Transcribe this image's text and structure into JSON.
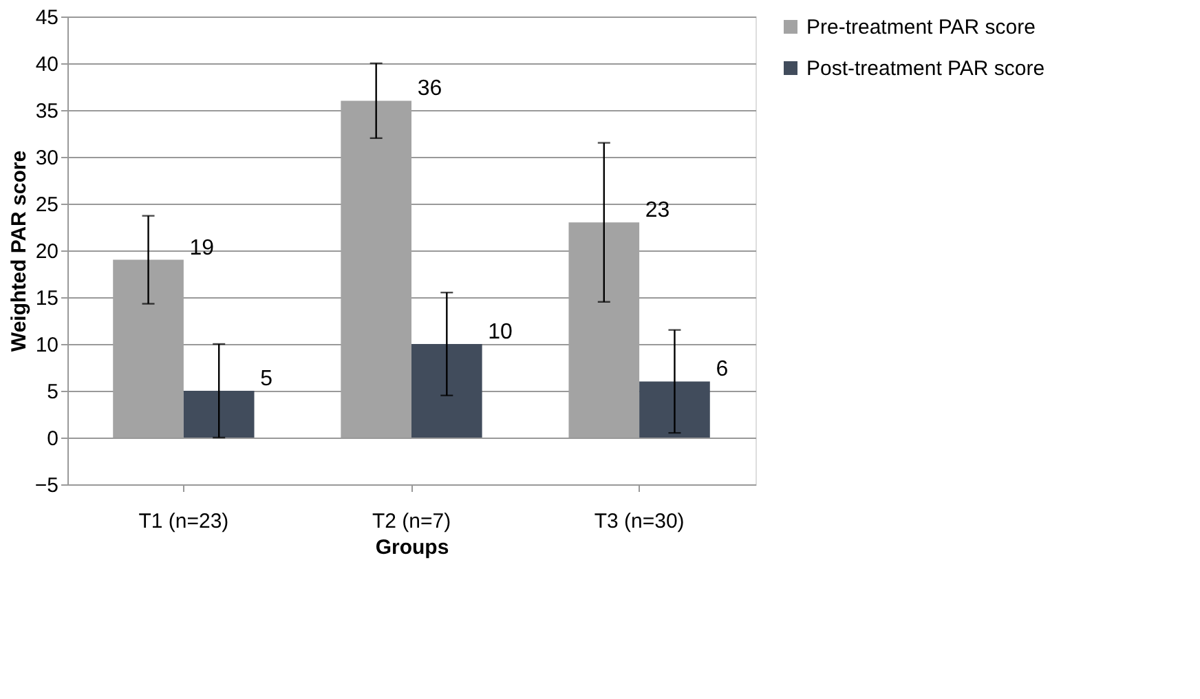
{
  "chart_data": {
    "type": "bar",
    "xlabel": "Groups",
    "ylabel": "Weighted PAR score",
    "categories": [
      "T1 (n=23)",
      "T2 (n=7)",
      "T3 (n=30)"
    ],
    "series": [
      {
        "name": "Pre-treatment PAR score",
        "color": "#a3a3a3",
        "values": [
          19,
          36,
          23
        ],
        "errors": [
          [
            14.3,
            23.7
          ],
          [
            32,
            40
          ],
          [
            14.5,
            31.5
          ]
        ]
      },
      {
        "name": "Post-treatment PAR score",
        "color": "#414c5c",
        "values": [
          5,
          10,
          6
        ],
        "errors": [
          [
            0,
            10
          ],
          [
            4.5,
            15.5
          ],
          [
            0.5,
            11.5
          ]
        ]
      }
    ],
    "ylim": [
      -5,
      45
    ],
    "yticks": [
      -5,
      0,
      5,
      10,
      15,
      20,
      25,
      30,
      35,
      40,
      45
    ],
    "grid": "y",
    "legend": "right",
    "data_labels": true
  }
}
